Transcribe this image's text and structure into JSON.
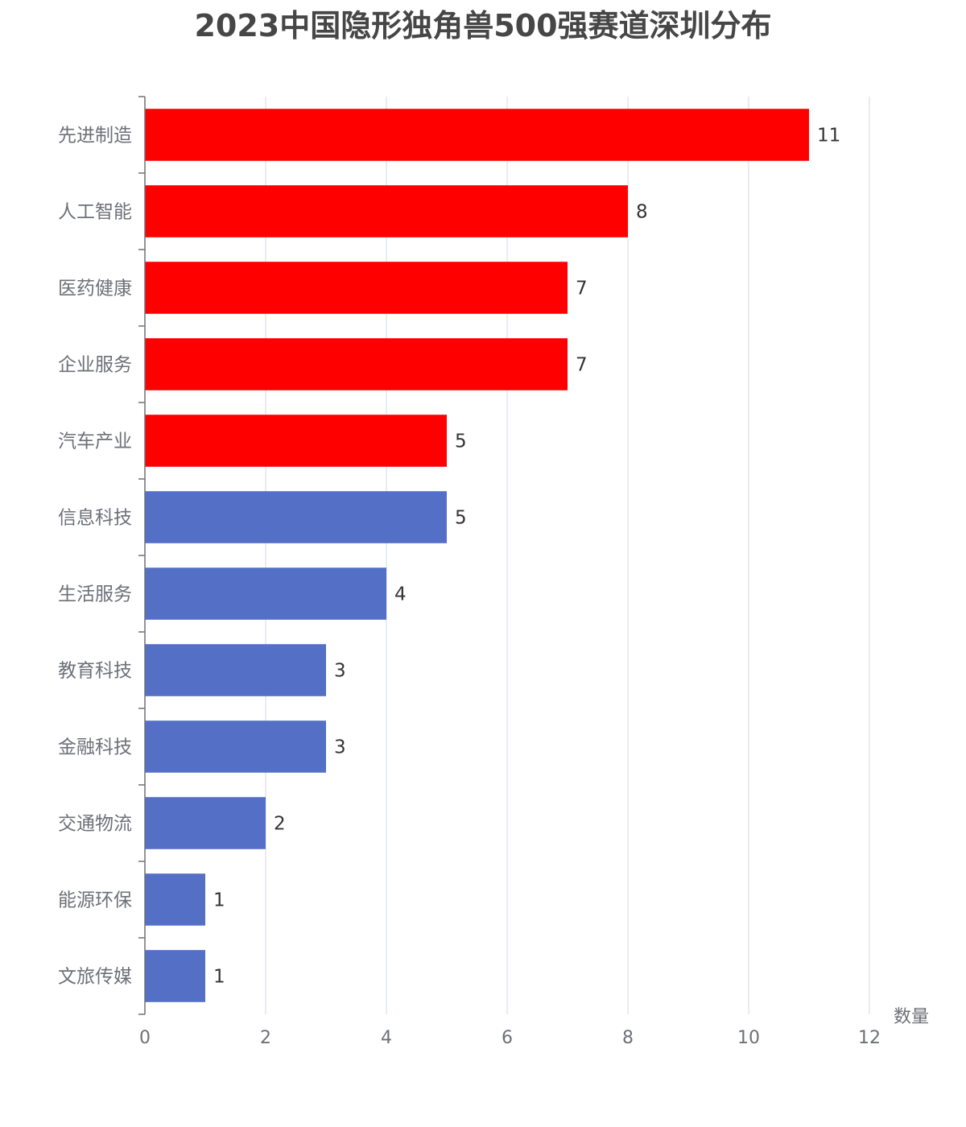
{
  "chart_data": {
    "type": "bar",
    "orientation": "horizontal",
    "title": "2023中国隐形独角兽500强赛道深圳分布",
    "xlabel": "数量",
    "ylabel": "",
    "xlim": [
      0,
      12
    ],
    "x_ticks": [
      0,
      2,
      4,
      6,
      8,
      10,
      12
    ],
    "grid": "vertical lines",
    "categories": [
      "先进制造",
      "人工智能",
      "医药健康",
      "企业服务",
      "汽车产业",
      "信息科技",
      "生活服务",
      "教育科技",
      "金融科技",
      "交通物流",
      "能源环保",
      "文旅传媒"
    ],
    "values": [
      11,
      8,
      7,
      7,
      5,
      5,
      4,
      3,
      3,
      2,
      1,
      1
    ],
    "highlight_count": 5,
    "colors": {
      "highlight": "#ff0000",
      "normal": "#5470c6",
      "grid": "#e0e6f1",
      "axis": "#6e7079"
    }
  }
}
